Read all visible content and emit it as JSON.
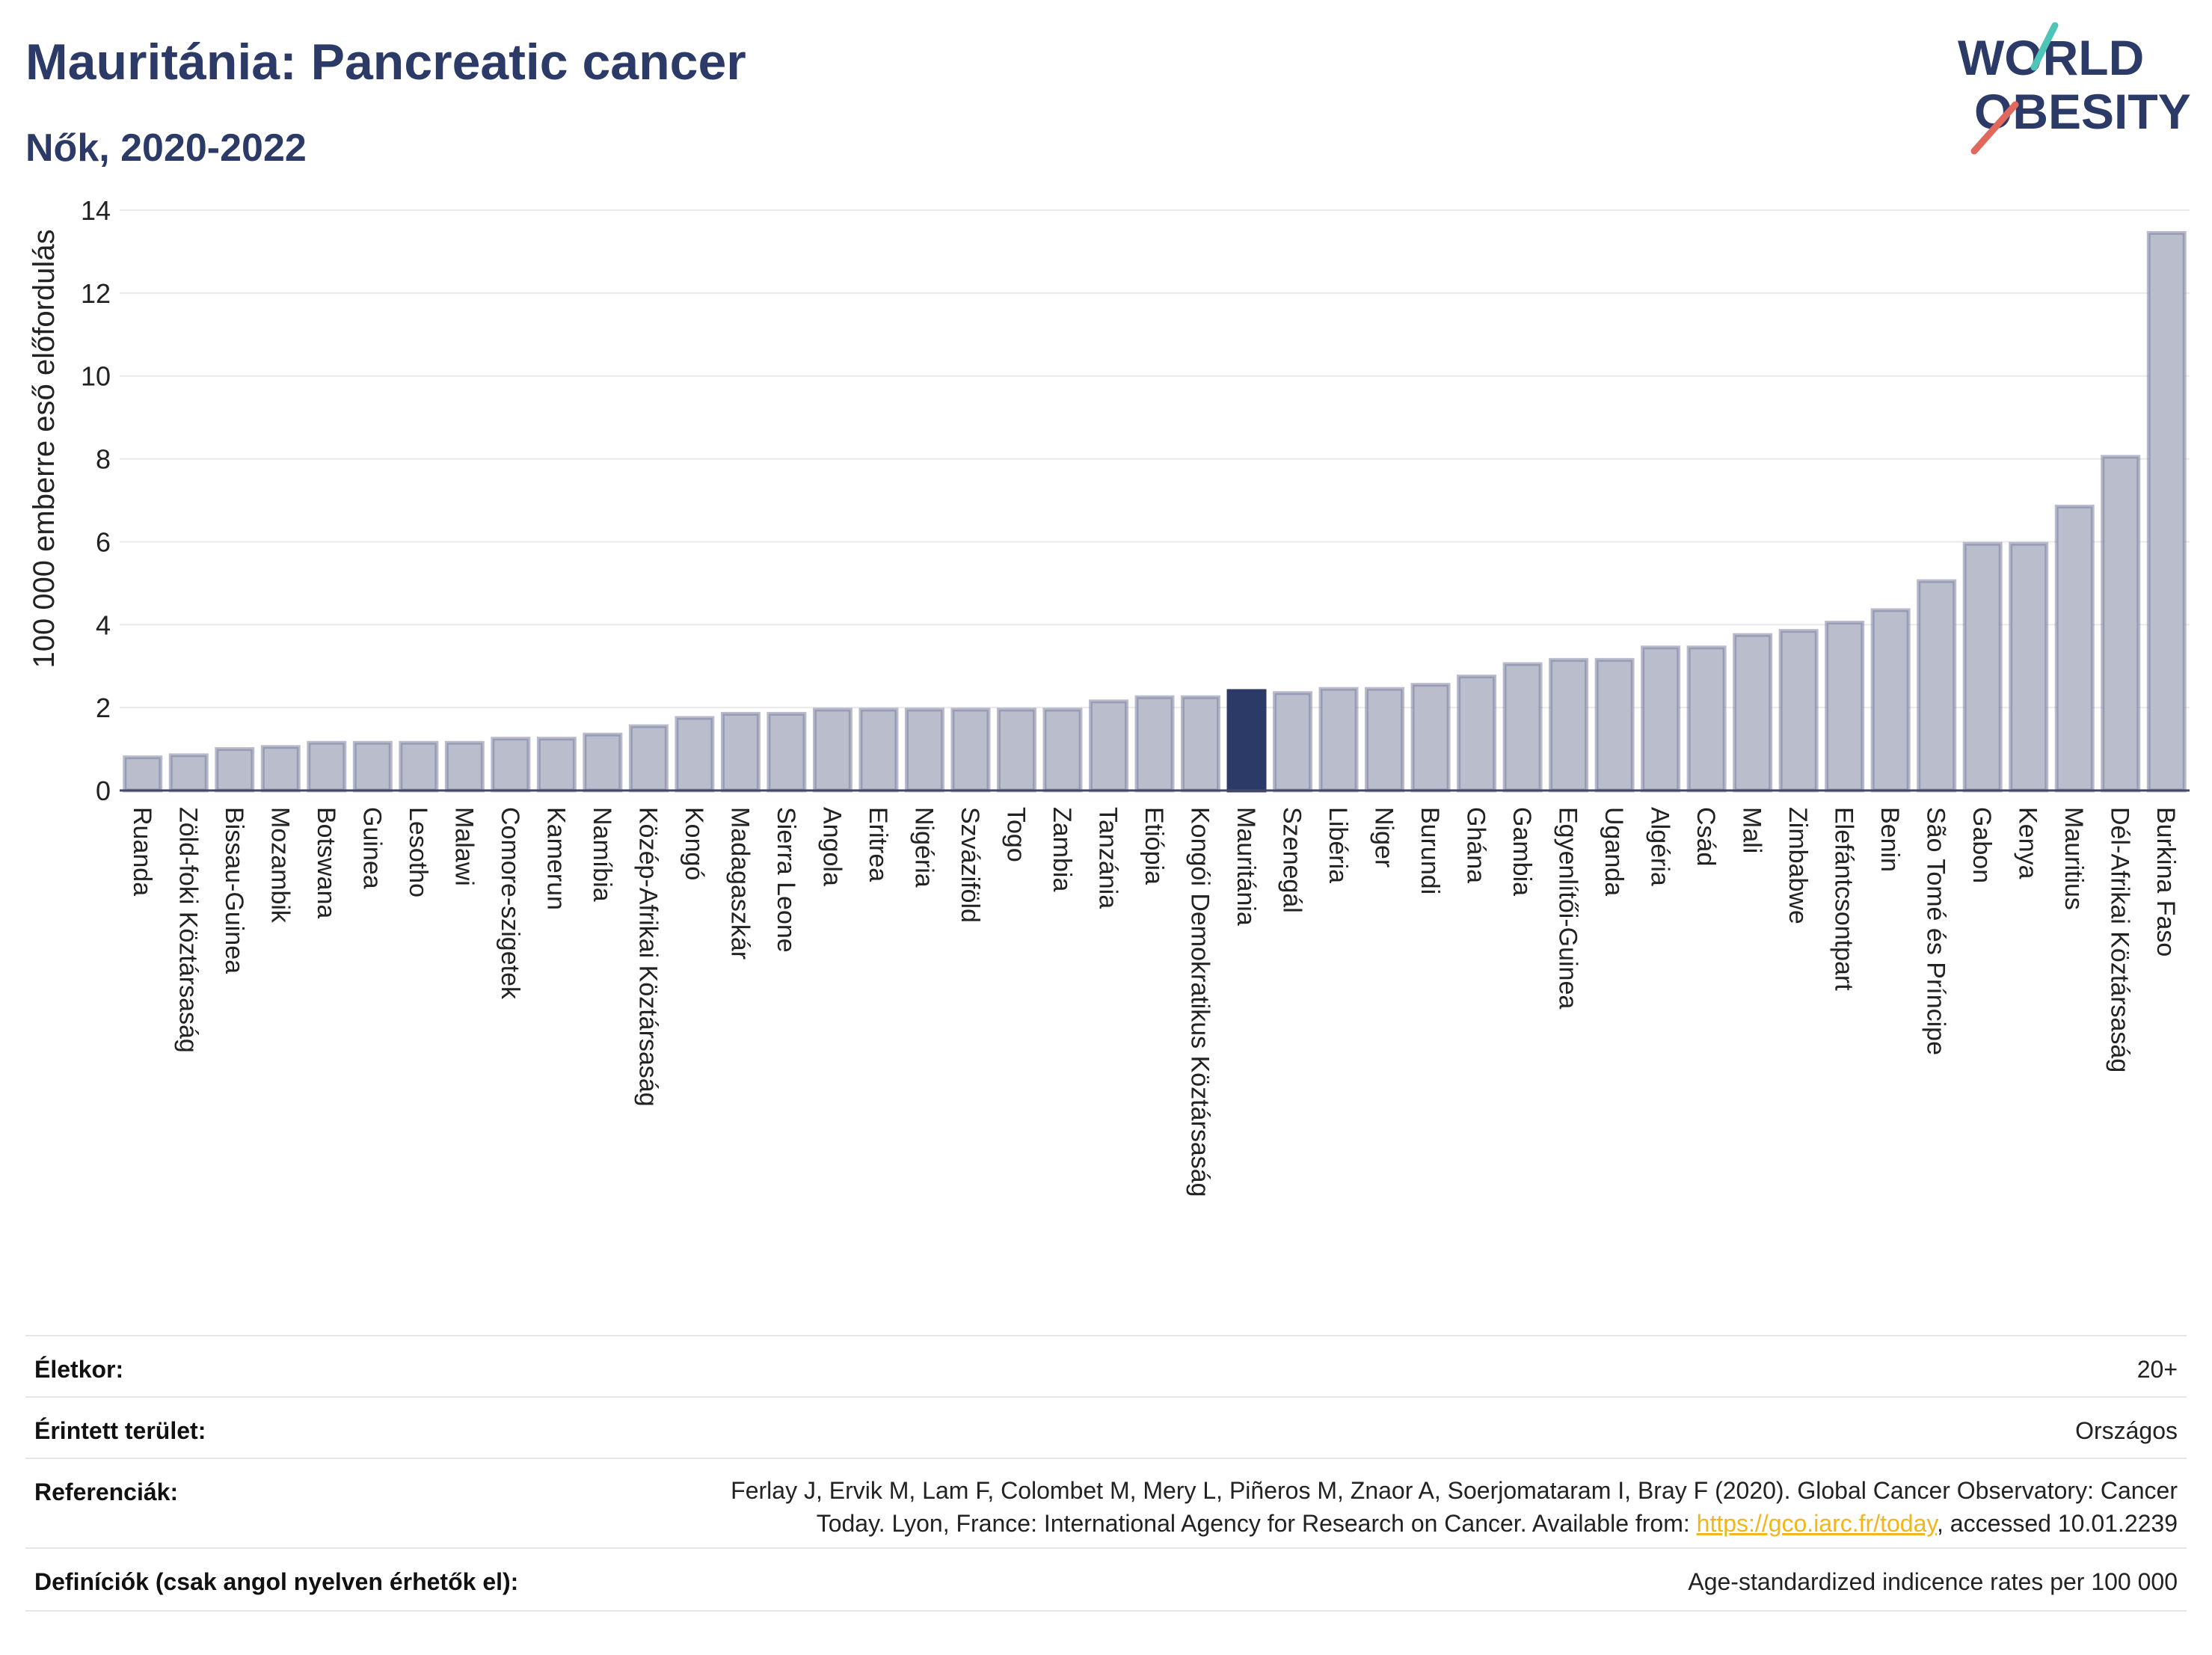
{
  "header": {
    "title": "Mauritánia: Pancreatic cancer",
    "subtitle": "Nők, 2020-2022",
    "logo_line1": "WORLD",
    "logo_line2": "OBESITY"
  },
  "colors": {
    "bar": "#b9bdcc",
    "bar_stroke": "#7d84a0",
    "highlight": "#2b3a67",
    "title": "#2b3a67",
    "grid": "#e9e9ee",
    "logo_teal": "#4fc4b8",
    "logo_red": "#e0685c"
  },
  "chart_data": {
    "type": "bar",
    "ylabel": "100 000 emberre eső előfordulás",
    "ylim": [
      0,
      14
    ],
    "yticks": [
      0,
      2,
      4,
      6,
      8,
      10,
      12,
      14
    ],
    "grid": true,
    "highlight": "Mauritánia",
    "categories": [
      "Ruanda",
      "Zöld-foki Köztársaság",
      "Bissau-Guinea",
      "Mozambik",
      "Botswana",
      "Guinea",
      "Lesotho",
      "Malawi",
      "Comore-szigetek",
      "Kamerun",
      "Namíbia",
      "Közép-Afrikai Köztársaság",
      "Kongó",
      "Madagaszkár",
      "Sierra Leone",
      "Angola",
      "Eritrea",
      "Nigéria",
      "Szváziföld",
      "Togo",
      "Zambia",
      "Tanzánia",
      "Etiópia",
      "Kongói Demokratikus Köztársaság",
      "Mauritánia",
      "Szenegál",
      "Libéria",
      "Niger",
      "Burundi",
      "Ghána",
      "Gambia",
      "Egyenlítői-Guinea",
      "Uganda",
      "Algéria",
      "Csád",
      "Mali",
      "Zimbabwe",
      "Elefántcsontpart",
      "Benin",
      "São Tomé és Príncipe",
      "Gabon",
      "Kenya",
      "Mauritius",
      "Dél-Afrikai Köztársaság",
      "Burkina Faso"
    ],
    "values": [
      0.8,
      0.85,
      1.0,
      1.05,
      1.15,
      1.15,
      1.15,
      1.15,
      1.25,
      1.25,
      1.35,
      1.55,
      1.75,
      1.85,
      1.85,
      1.95,
      1.95,
      1.95,
      1.95,
      1.95,
      1.95,
      2.15,
      2.25,
      2.25,
      2.4,
      2.35,
      2.45,
      2.45,
      2.55,
      2.75,
      3.05,
      3.15,
      3.15,
      3.45,
      3.45,
      3.75,
      3.85,
      4.05,
      4.35,
      5.05,
      5.95,
      5.95,
      6.85,
      8.05,
      13.45
    ]
  },
  "meta": {
    "age_label": "Életkor:",
    "age_value": "20+",
    "area_label": "Érintett terület:",
    "area_value": "Országos",
    "ref_label": "Referenciák:",
    "ref_line1": "Ferlay J, Ervik M, Lam F, Colombet M, Mery L, Piñeros M, Znaor A, Soerjomataram I, Bray F (2020). Global Cancer Observatory: Cancer",
    "ref_line2_pre": "Today. Lyon, France: International Agency for Research on Cancer. Available from: ",
    "ref_link": "https://gco.iarc.fr/today",
    "ref_line2_post": ", accessed 10.01.2239",
    "def_label": "Definíciók (csak angol nyelven érhetők el):",
    "def_value": "Age-standardized indicence rates per 100 000"
  }
}
